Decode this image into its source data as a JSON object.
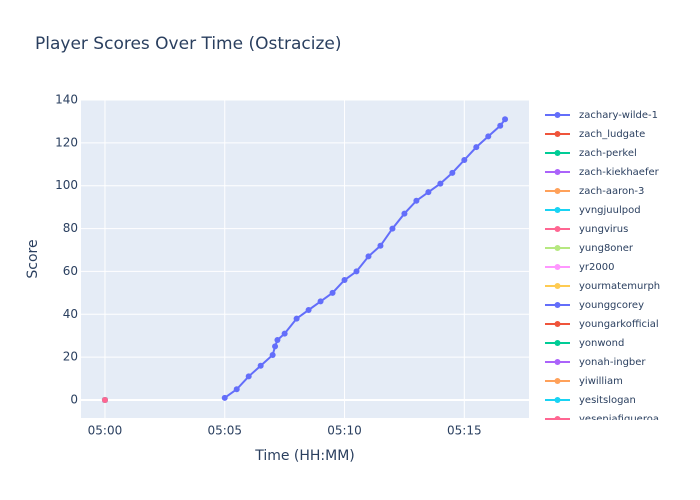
{
  "chart_data": {
    "type": "line",
    "title": "Player Scores Over Time (Ostracize)",
    "x_label": "Time (HH:MM)",
    "y_label": "Score",
    "xlim": [
      299,
      317.7
    ],
    "ylim": [
      -8.4,
      140
    ],
    "xticks": [
      {
        "value": 300,
        "label": "05:00"
      },
      {
        "value": 305,
        "label": "05:05"
      },
      {
        "value": 310,
        "label": "05:10"
      },
      {
        "value": 315,
        "label": "05:15"
      }
    ],
    "yticks": [
      0,
      20,
      40,
      60,
      80,
      100,
      120,
      140
    ],
    "grid": true,
    "series": [
      {
        "name": "zachary-wilde-1",
        "color": "#636efa",
        "x": [
          305,
          305.5,
          306,
          306.5,
          307,
          307.1,
          307.2,
          307.5,
          308,
          308.5,
          309,
          309.5,
          310,
          310.5,
          311,
          311.5,
          312,
          312.5,
          313,
          313.5,
          314,
          314.5,
          315,
          315.5,
          316,
          316.5,
          316.7
        ],
        "values": [
          1,
          5,
          11,
          16,
          21,
          25,
          28,
          31,
          38,
          42,
          46,
          50,
          56,
          60,
          67,
          72,
          80,
          87,
          93,
          97,
          101,
          106,
          112,
          118,
          123,
          128,
          131
        ]
      },
      {
        "name": "zach_ludgate",
        "color": "#EF553B",
        "x": [
          300
        ],
        "values": [
          0
        ]
      },
      {
        "name": "zach-perkel",
        "color": "#00cc96",
        "x": [
          300
        ],
        "values": [
          0
        ]
      },
      {
        "name": "zach-kiekhaefer",
        "color": "#ab63fa",
        "x": [
          300
        ],
        "values": [
          0
        ]
      },
      {
        "name": "zach-aaron-3",
        "color": "#FFA15A",
        "x": [
          300
        ],
        "values": [
          0
        ]
      },
      {
        "name": "yvngjuulpod",
        "color": "#19d3f3",
        "x": [
          300
        ],
        "values": [
          0
        ]
      },
      {
        "name": "yungvirus",
        "color": "#FF6692",
        "x": [
          300
        ],
        "values": [
          0
        ]
      },
      {
        "name": "yung8oner",
        "color": "#B6E880",
        "x": [
          300
        ],
        "values": [
          0
        ]
      },
      {
        "name": "yr2000",
        "color": "#FF97FF",
        "x": [
          300
        ],
        "values": [
          0
        ]
      },
      {
        "name": "yourmatemurph",
        "color": "#FECB52",
        "x": [
          300
        ],
        "values": [
          0
        ]
      },
      {
        "name": "younggcorey",
        "color": "#636efa",
        "x": [
          300
        ],
        "values": [
          0
        ]
      },
      {
        "name": "youngarkofficial",
        "color": "#EF553B",
        "x": [
          300
        ],
        "values": [
          0
        ]
      },
      {
        "name": "yonwond",
        "color": "#00cc96",
        "x": [
          300
        ],
        "values": [
          0
        ]
      },
      {
        "name": "yonah-ingber",
        "color": "#ab63fa",
        "x": [
          300
        ],
        "values": [
          0
        ]
      },
      {
        "name": "yiwilliam",
        "color": "#FFA15A",
        "x": [
          300
        ],
        "values": [
          0
        ]
      },
      {
        "name": "yesitslogan",
        "color": "#19d3f3",
        "x": [
          300
        ],
        "values": [
          0
        ]
      },
      {
        "name": "yeseniafigueroa",
        "color": "#FF6692",
        "x": [
          300
        ],
        "values": [
          0
        ]
      }
    ]
  }
}
